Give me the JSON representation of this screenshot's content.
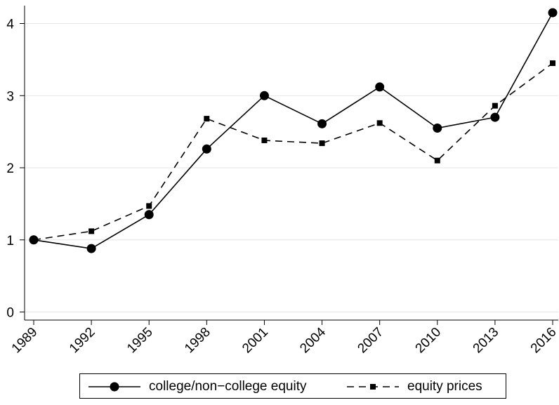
{
  "chart_data": {
    "type": "line",
    "title": "",
    "xlabel": "",
    "ylabel": "",
    "x": [
      "1989",
      "1992",
      "1995",
      "1998",
      "2001",
      "2004",
      "2007",
      "2010",
      "2013",
      "2016"
    ],
    "y_ticks": [
      "0",
      "1",
      "2",
      "3",
      "4"
    ],
    "ylim": [
      0,
      4.2
    ],
    "grid": "horizontal",
    "legend_position": "bottom",
    "series": [
      {
        "name": "college/non−college equity",
        "values": [
          1.0,
          0.88,
          1.35,
          2.26,
          3.0,
          2.61,
          3.12,
          2.55,
          2.7,
          4.15
        ],
        "color": "#000000",
        "line_style": "solid",
        "marker": "circle"
      },
      {
        "name": "equity prices",
        "values": [
          1.0,
          1.12,
          1.47,
          2.68,
          2.38,
          2.34,
          2.62,
          2.1,
          2.86,
          3.45
        ],
        "color": "#000000",
        "line_style": "dashed",
        "marker": "square"
      }
    ],
    "colors": {
      "gridline": "#e6e6e6",
      "axis": "#000000"
    }
  }
}
